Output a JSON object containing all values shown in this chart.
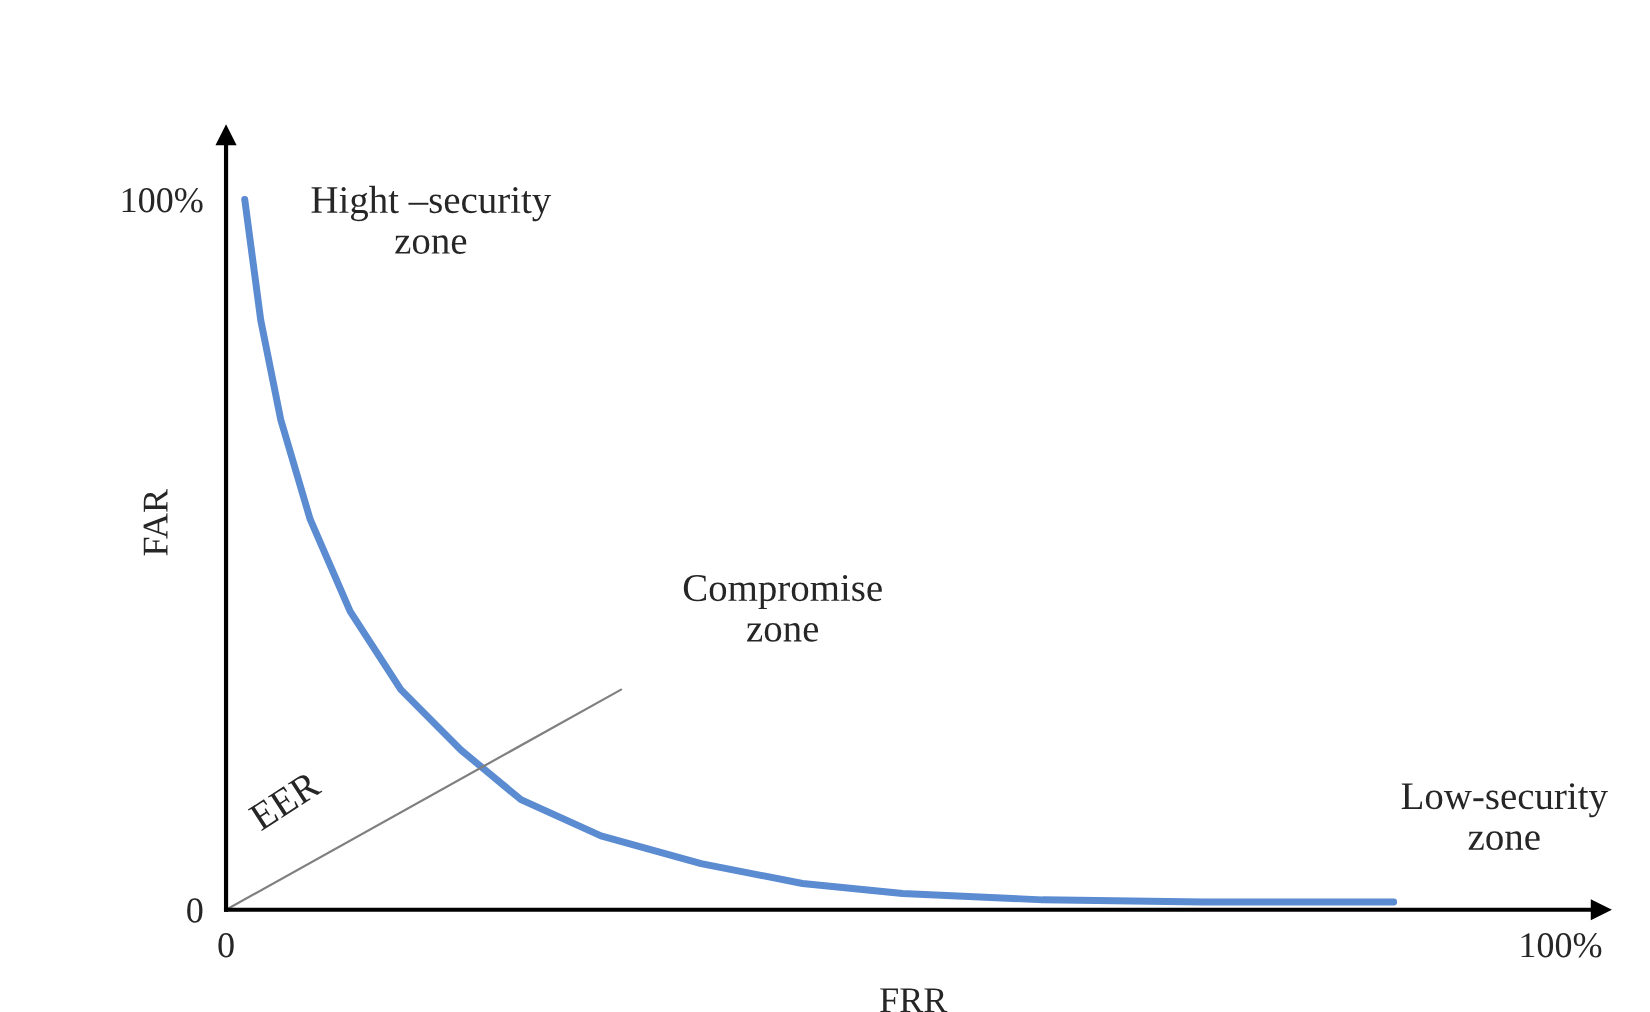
{
  "chart_data": {
    "type": "line",
    "xlabel": "FRR",
    "ylabel": "FAR",
    "xlim": [
      0,
      103
    ],
    "ylim": [
      0,
      109
    ],
    "xticks": [
      {
        "value": 0,
        "label": "0"
      },
      {
        "value": 100,
        "label": "100%"
      }
    ],
    "yticks": [
      {
        "value": 0,
        "label": "0"
      },
      {
        "value": 100,
        "label": "100%"
      }
    ],
    "grid": false,
    "legend": false,
    "marker": "none",
    "series": [
      {
        "color": "#5b8bd0",
        "line_style": "solid",
        "x": [
          1.4,
          2.6,
          4.1,
          6.3,
          9.3,
          13.1,
          17.6,
          22.1,
          28.1,
          35.6,
          43.2,
          50.7,
          61.2,
          73.2,
          87.5
        ],
        "values": [
          100,
          83,
          69,
          55,
          42,
          31,
          22.5,
          15.5,
          10.4,
          6.5,
          3.7,
          2.3,
          1.4,
          1.1,
          1.1
        ]
      },
      {
        "color": "#808080",
        "line_style": "solid",
        "x": [
          0,
          29.6
        ],
        "values": [
          0,
          31
        ]
      }
    ],
    "annotations": [
      "Hight –security\nzone",
      "Compromise\nzone",
      "Low-security\nzone",
      "EER"
    ]
  }
}
